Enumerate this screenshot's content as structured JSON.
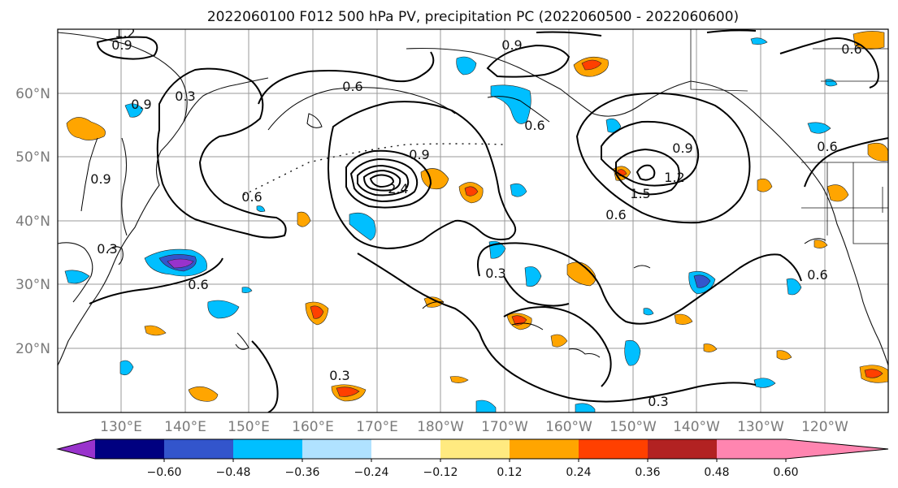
{
  "title": "2022060100 F012 500 hPa PV, precipitation PC (2022060500 - 2022060600)",
  "map": {
    "lon_ticks": [
      "130°E",
      "140°E",
      "150°E",
      "160°E",
      "170°E",
      "180°W",
      "170°W",
      "160°W",
      "150°W",
      "140°W",
      "130°W",
      "120°W"
    ],
    "lat_ticks": [
      "60°N",
      "50°N",
      "40°N",
      "30°N",
      "20°N"
    ],
    "contour_labels": [
      "1.2",
      "0.9",
      "0.9",
      "0.3",
      "0.6",
      "0.6",
      "0.9",
      "0.6",
      "0.6",
      "0.9",
      "0.3",
      "0.3",
      "0.6",
      "0.9",
      "1.2",
      "1.5",
      "2.4",
      "0.6",
      "0.3",
      "0.3",
      "0.6",
      "0.6",
      "0.9"
    ],
    "colors": {
      "coast": "#111111",
      "grid": "#9a9a9a"
    }
  },
  "colorbar": {
    "labels": [
      "−0.60",
      "−0.48",
      "−0.36",
      "−0.24",
      "−0.12",
      "0.12",
      "0.24",
      "0.36",
      "0.48",
      "0.60"
    ],
    "colors": [
      "#9933cc",
      "#000080",
      "#3355cc",
      "#00bfff",
      "#b0e2ff",
      "#ffffff",
      "#ffea80",
      "#ffa500",
      "#ff4000",
      "#b22222",
      "#ff85b0"
    ]
  }
}
